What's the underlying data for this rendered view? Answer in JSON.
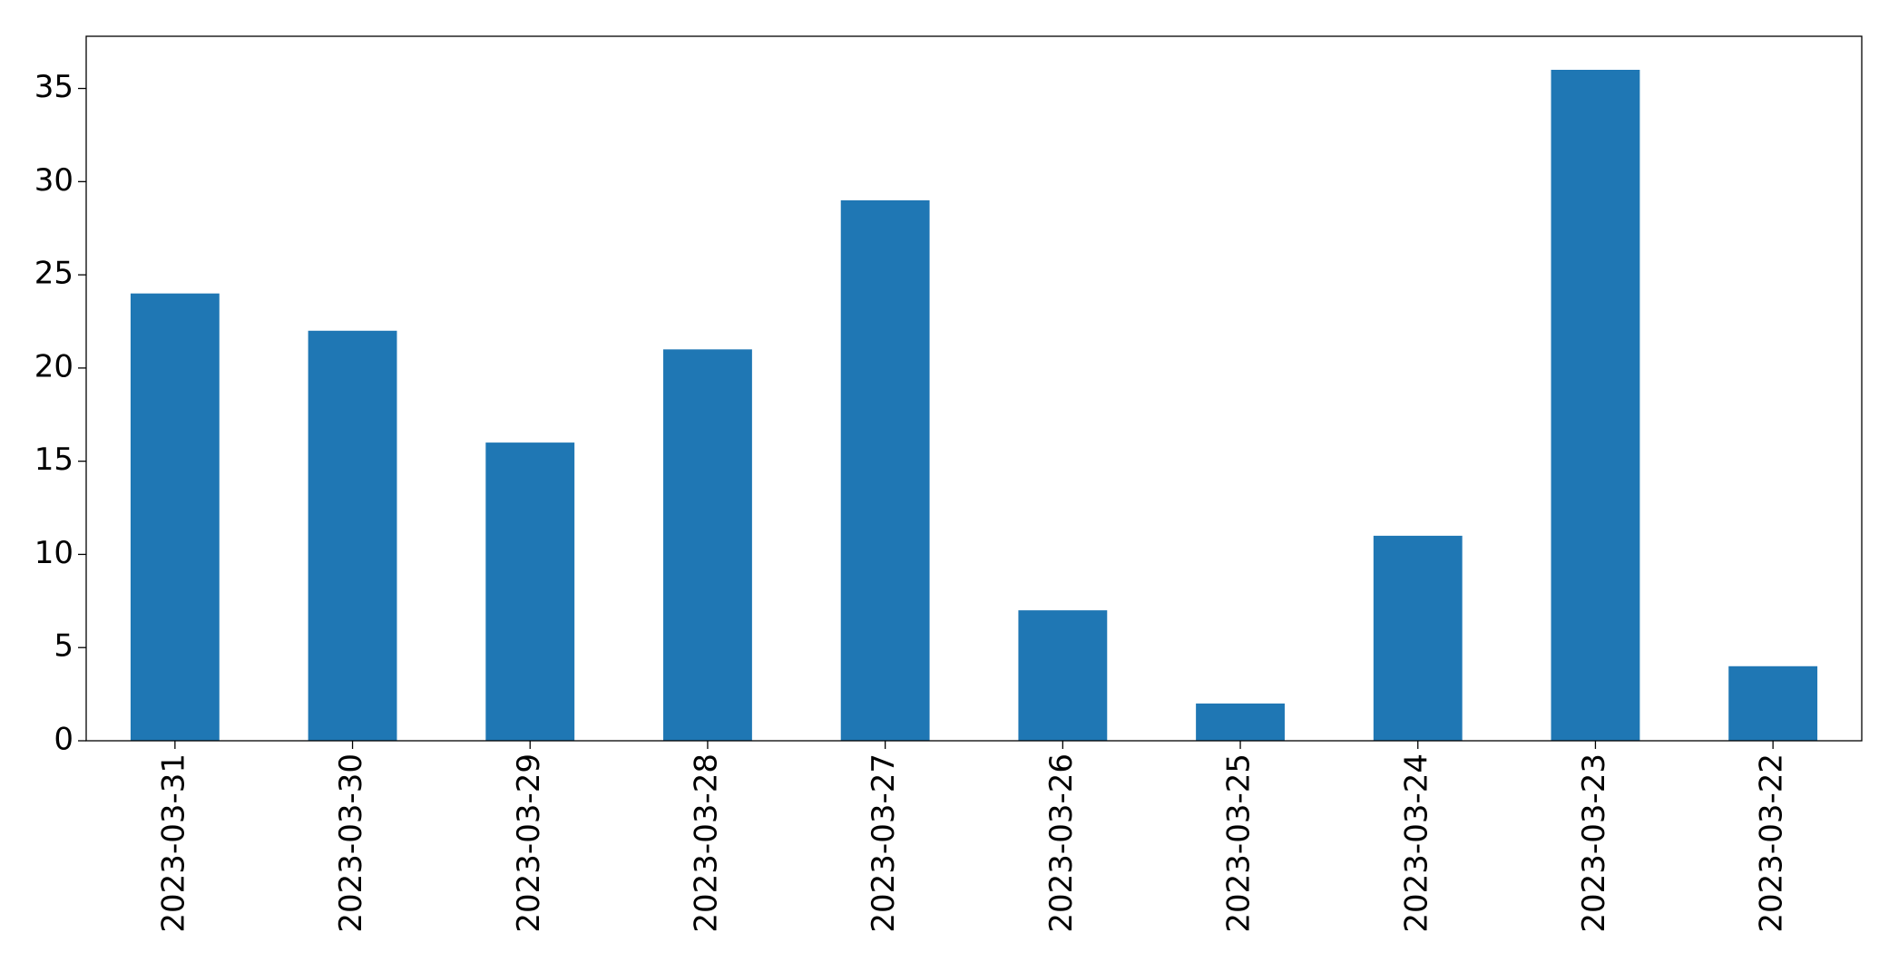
{
  "chart_data": {
    "type": "bar",
    "categories": [
      "2023-03-31",
      "2023-03-30",
      "2023-03-29",
      "2023-03-28",
      "2023-03-27",
      "2023-03-26",
      "2023-03-25",
      "2023-03-24",
      "2023-03-23",
      "2023-03-22"
    ],
    "values": [
      24,
      22,
      16,
      21,
      29,
      7,
      2,
      11,
      36,
      4
    ],
    "color": "#1f77b4",
    "ylim": [
      0,
      37.8
    ],
    "yticks": [
      0,
      5,
      10,
      15,
      20,
      25,
      30,
      35
    ],
    "grid": false
  }
}
